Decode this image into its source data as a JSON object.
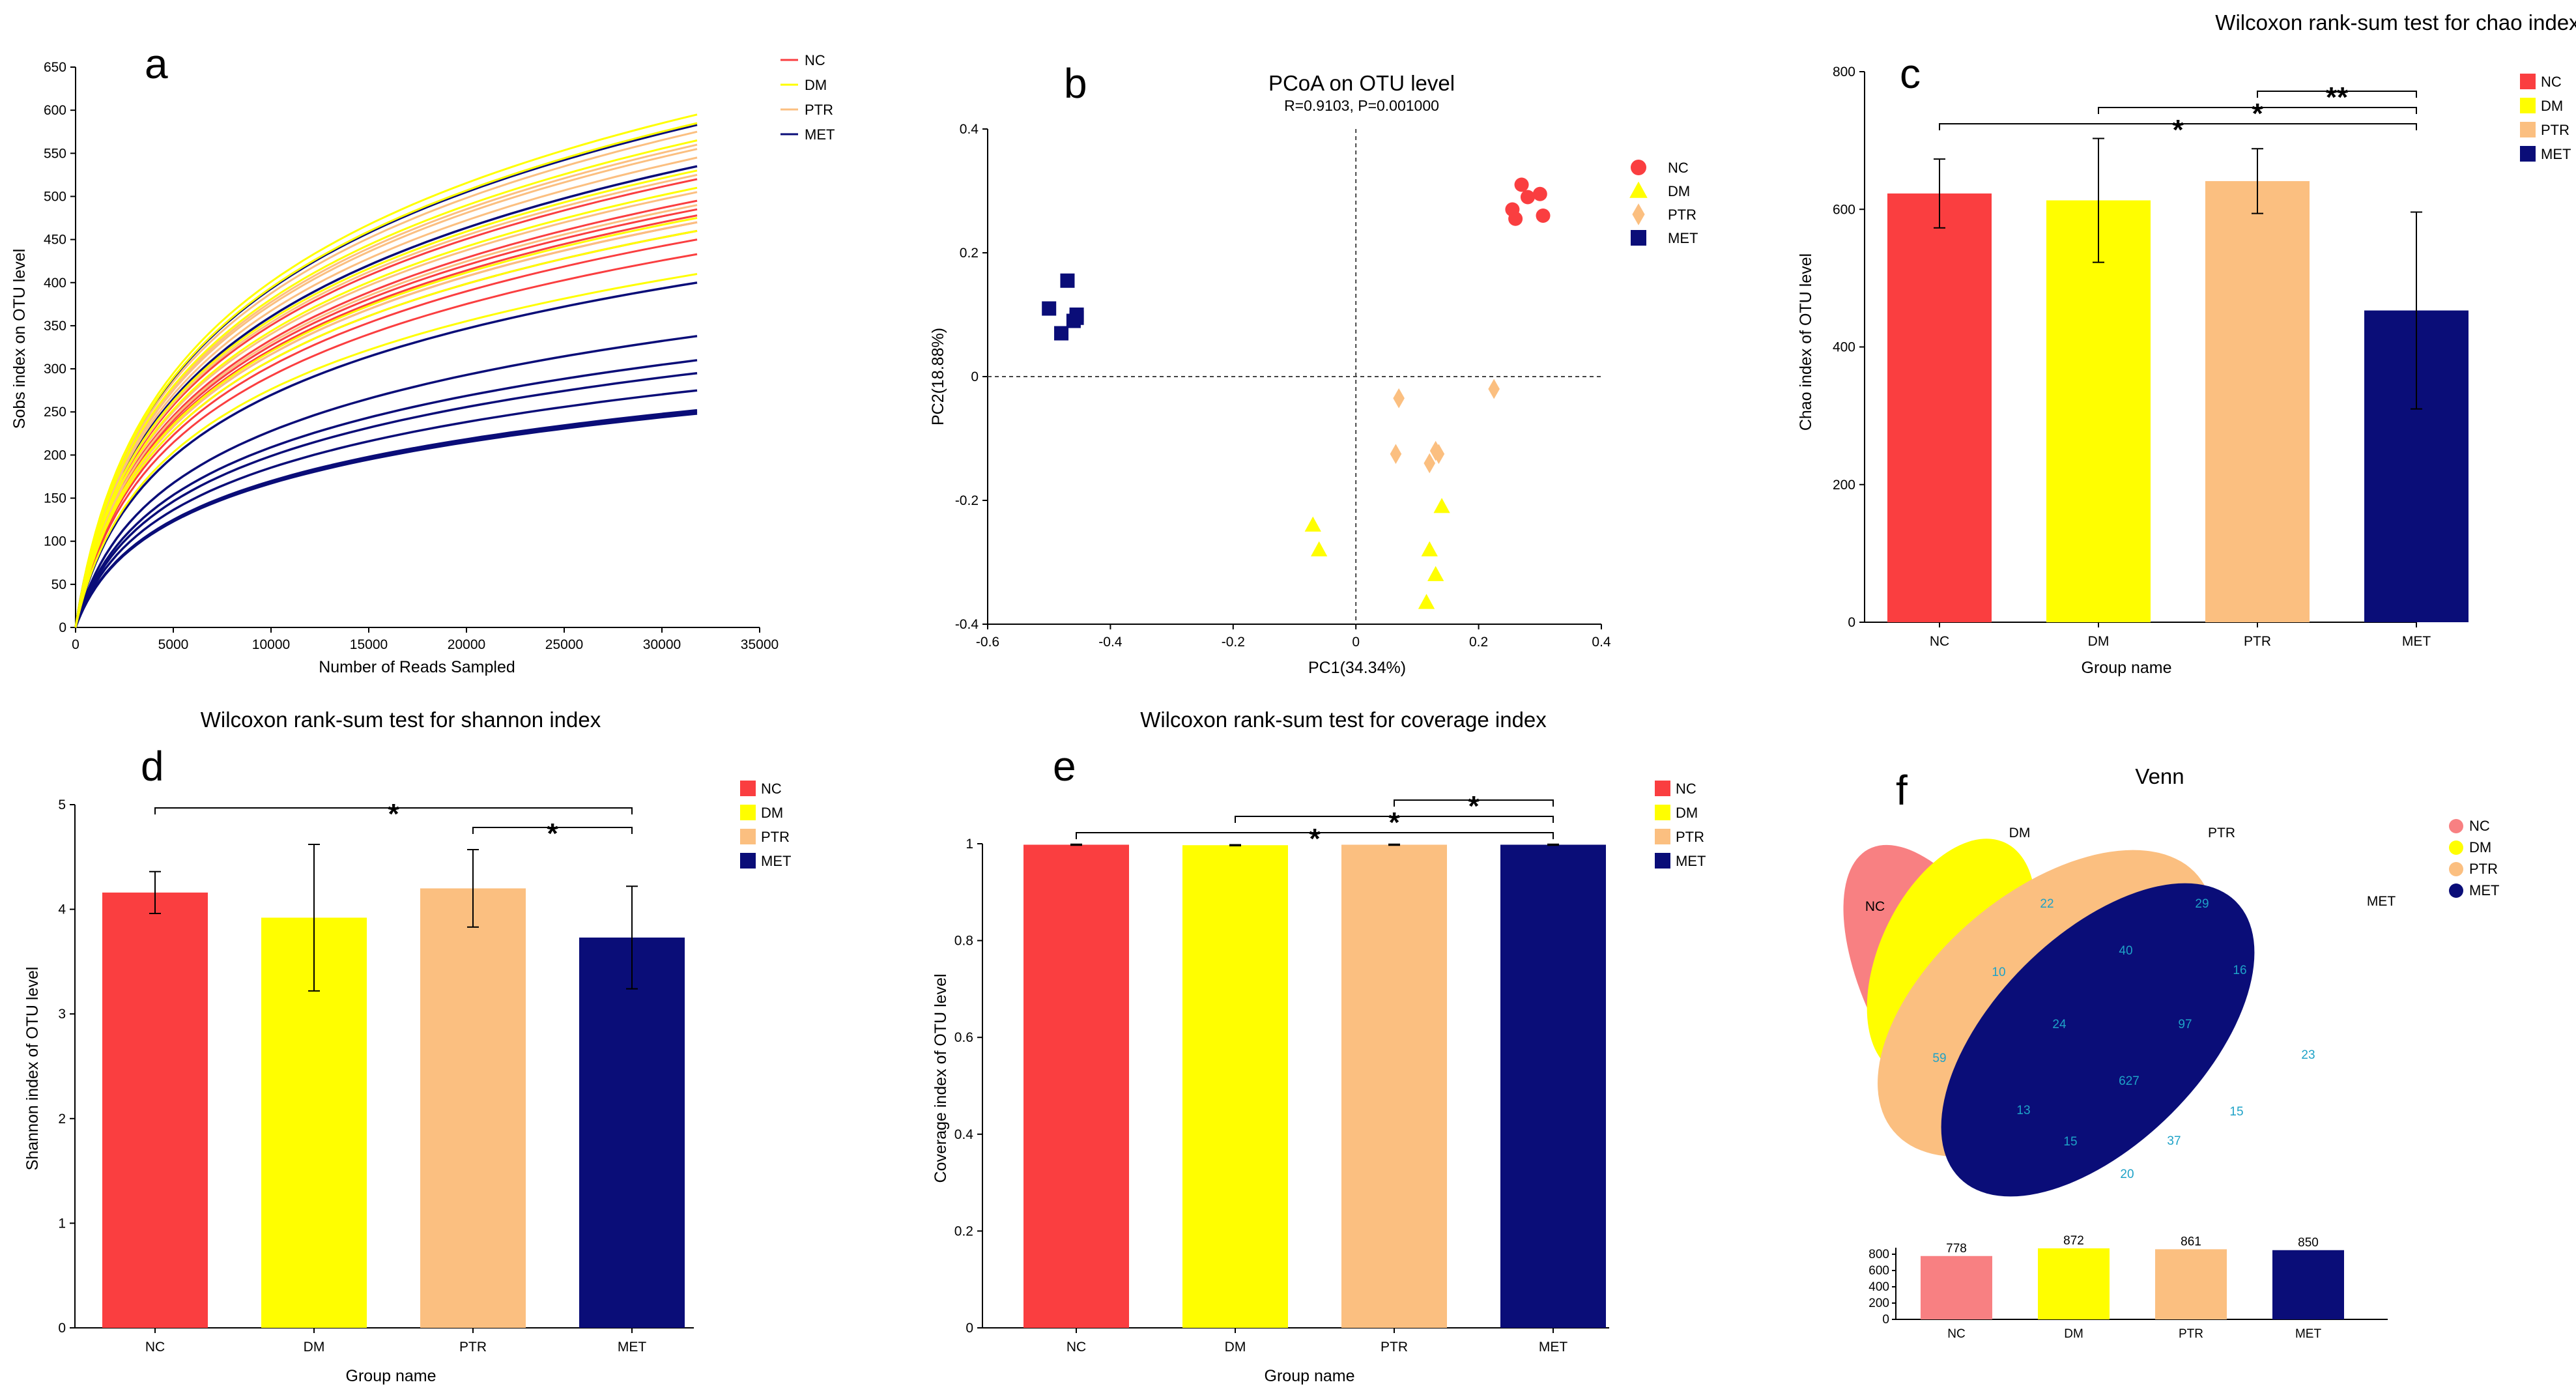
{
  "colors": {
    "NC": "#fa3e40",
    "DM": "#fffe00",
    "PTR": "#fbbf80",
    "MET": "#0a0d78",
    "venn_NC": "#f88082"
  },
  "chart_data": [
    {
      "panel": "a",
      "type": "line",
      "xlabel": "Number of Reads Sampled",
      "ylabel": "Sobs index on OTU level",
      "xlim": [
        0,
        35000
      ],
      "ylim": [
        0,
        650
      ],
      "xticks": [
        "0",
        "5000",
        "10000",
        "15000",
        "20000",
        "25000",
        "30000",
        "35000"
      ],
      "yticks": [
        "0",
        "50",
        "100",
        "150",
        "200",
        "250",
        "300",
        "350",
        "400",
        "450",
        "500",
        "550",
        "600",
        "650"
      ],
      "x_max_sampled": 31800,
      "legend": [
        "NC",
        "DM",
        "PTR",
        "MET"
      ],
      "final_values": {
        "NC": [
          495,
          485,
          470,
          460,
          450,
          478,
          520,
          433
        ],
        "DM": [
          595,
          585,
          565,
          530,
          510,
          475,
          460,
          410
        ],
        "PTR": [
          575,
          560,
          555,
          545,
          525,
          505,
          490,
          470
        ],
        "MET": [
          583,
          535,
          400,
          338,
          310,
          295,
          275,
          252,
          250,
          248
        ]
      }
    },
    {
      "panel": "b",
      "type": "scatter",
      "title": "PCoA on OTU level",
      "subtitle": "R=0.9103, P=0.001000",
      "xlabel": "PC1(34.34%)",
      "ylabel": "PC2(18.88%)",
      "xlim": [
        -0.6,
        0.4
      ],
      "ylim": [
        -0.4,
        0.4
      ],
      "xticks": [
        "-0.6",
        "-0.4",
        "-0.2",
        "0",
        "0.2",
        "0.4"
      ],
      "yticks": [
        "-0.4",
        "-0.2",
        "0",
        "0.2",
        "0.4"
      ],
      "legend": [
        "NC",
        "DM",
        "PTR",
        "MET"
      ],
      "series": [
        {
          "name": "NC",
          "marker": "circle",
          "points": [
            [
              0.27,
              0.31
            ],
            [
              0.255,
              0.27
            ],
            [
              0.28,
              0.29
            ],
            [
              0.3,
              0.295
            ],
            [
              0.305,
              0.26
            ],
            [
              0.26,
              0.255
            ]
          ]
        },
        {
          "name": "DM",
          "marker": "triangle",
          "points": [
            [
              -0.07,
              -0.24
            ],
            [
              -0.06,
              -0.28
            ],
            [
              0.12,
              -0.28
            ],
            [
              0.13,
              -0.32
            ],
            [
              0.14,
              -0.21
            ],
            [
              0.115,
              -0.365
            ]
          ]
        },
        {
          "name": "PTR",
          "marker": "diamond",
          "points": [
            [
              0.07,
              -0.035
            ],
            [
              0.225,
              -0.02
            ],
            [
              0.065,
              -0.125
            ],
            [
              0.12,
              -0.14
            ],
            [
              0.13,
              -0.12
            ],
            [
              0.135,
              -0.125
            ]
          ]
        },
        {
          "name": "MET",
          "marker": "square",
          "points": [
            [
              -0.47,
              0.155
            ],
            [
              -0.5,
              0.11
            ],
            [
              -0.455,
              0.095
            ],
            [
              -0.48,
              0.07
            ],
            [
              -0.46,
              0.09
            ],
            [
              -0.455,
              0.1
            ]
          ]
        }
      ]
    },
    {
      "panel": "c",
      "type": "bar",
      "title": "Wilcoxon rank-sum test for chao index",
      "xlabel": "Group name",
      "ylabel": "Chao index of OTU level",
      "categories": [
        "NC",
        "DM",
        "PTR",
        "MET"
      ],
      "values": [
        623,
        613,
        641,
        453
      ],
      "errors": [
        50,
        90,
        47,
        143
      ],
      "ylim": [
        0,
        800
      ],
      "yticks": [
        "0",
        "200",
        "400",
        "600",
        "800"
      ],
      "significance": [
        {
          "from": "PTR",
          "to": "MET",
          "label": "**"
        },
        {
          "from": "DM",
          "to": "MET",
          "label": "*"
        },
        {
          "from": "NC",
          "to": "MET",
          "label": "*"
        }
      ]
    },
    {
      "panel": "d",
      "type": "bar",
      "title": "Wilcoxon rank-sum test for shannon index",
      "xlabel": "Group name",
      "ylabel": "Shannon index of OTU level",
      "categories": [
        "NC",
        "DM",
        "PTR",
        "MET"
      ],
      "values": [
        4.16,
        3.92,
        4.2,
        3.73
      ],
      "errors": [
        0.2,
        0.7,
        0.37,
        0.49
      ],
      "ylim": [
        0,
        5
      ],
      "yticks": [
        "0",
        "1",
        "2",
        "3",
        "4",
        "5"
      ],
      "significance": [
        {
          "from": "NC",
          "to": "MET",
          "label": "*"
        },
        {
          "from": "PTR",
          "to": "MET",
          "label": "*"
        }
      ]
    },
    {
      "panel": "e",
      "type": "bar",
      "title": "Wilcoxon rank-sum test for coverage index",
      "xlabel": "Group name",
      "ylabel": "Coverage index of OTU level",
      "categories": [
        "NC",
        "DM",
        "PTR",
        "MET"
      ],
      "values": [
        0.998,
        0.997,
        0.998,
        0.998
      ],
      "errors": [
        0.001,
        0.001,
        0.001,
        0.001
      ],
      "ylim": [
        0,
        1
      ],
      "yticks": [
        "0",
        "0.2",
        "0.4",
        "0.6",
        "0.8",
        "1"
      ],
      "significance": [
        {
          "from": "PTR",
          "to": "MET",
          "label": "*"
        },
        {
          "from": "DM",
          "to": "MET",
          "label": "*"
        },
        {
          "from": "NC",
          "to": "MET",
          "label": "*"
        }
      ]
    },
    {
      "panel": "f",
      "type": "venn",
      "title": "Venn",
      "sets": [
        "DM",
        "PTR",
        "NC",
        "MET"
      ],
      "legend": [
        "NC",
        "DM",
        "PTR",
        "MET"
      ],
      "region_counts": [
        "22",
        "29",
        "10",
        "40",
        "16",
        "24",
        "97",
        "59",
        "627",
        "23",
        "13",
        "15",
        "15",
        "37",
        "20"
      ],
      "set_sizes": {
        "categories": [
          "NC",
          "DM",
          "PTR",
          "MET"
        ],
        "values": [
          778,
          872,
          861,
          850
        ],
        "value_labels": [
          "778",
          "872",
          "861",
          "850"
        ],
        "ylim": [
          0,
          800
        ],
        "yticks": [
          "0",
          "200",
          "400",
          "600",
          "800"
        ]
      }
    }
  ],
  "panel_letters": [
    "a",
    "b",
    "c",
    "d",
    "e",
    "f"
  ]
}
